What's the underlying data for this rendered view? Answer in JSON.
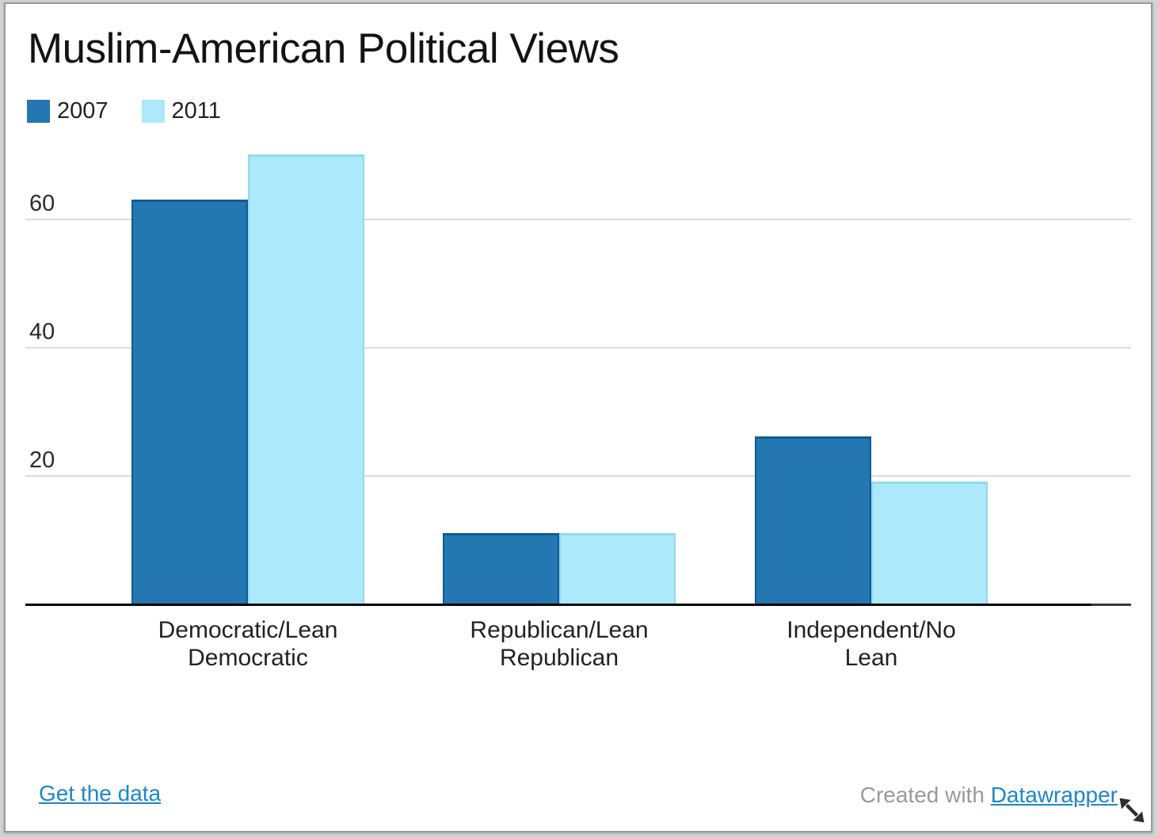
{
  "header": {
    "title": "Muslim-American Political Views"
  },
  "chart_data": {
    "type": "bar",
    "title": "Muslim-American Political Views",
    "categories": [
      "Democratic/Lean Democratic",
      "Republican/Lean Republican",
      "Independent/No Lean"
    ],
    "category_labels_wrapped": [
      [
        "Democratic/Lean",
        "Democratic"
      ],
      [
        "Republican/Lean",
        "Republican"
      ],
      [
        "Independent/No",
        "Lean"
      ]
    ],
    "series": [
      {
        "name": "2007",
        "color": "#2577b2",
        "border_color": "#0d5c95",
        "values": [
          63,
          11,
          26
        ]
      },
      {
        "name": "2011",
        "color": "#ace9fb",
        "border_color": "#93d9ef",
        "values": [
          70,
          11,
          19
        ]
      }
    ],
    "ylim": [
      0,
      72
    ],
    "yticks": [
      20,
      40,
      60
    ],
    "grid": "horizontal",
    "legend_position": "top-left"
  },
  "footer": {
    "left_link": "Get the data",
    "credit_text": "Created with ",
    "credit_link": "Datawrapper"
  },
  "colors": {
    "grid": "#dcdcdc",
    "axis": "#000000",
    "axis_tail": "#3a3a3a",
    "link": "#1d87c8",
    "credit_gray": "#9a9a9a",
    "card_border": "#9b9b9b",
    "outer_background": "#d3d3d3",
    "cursor": "#2e2e2e"
  },
  "cursor": {
    "icon": "resize-diagonal-arrow"
  }
}
